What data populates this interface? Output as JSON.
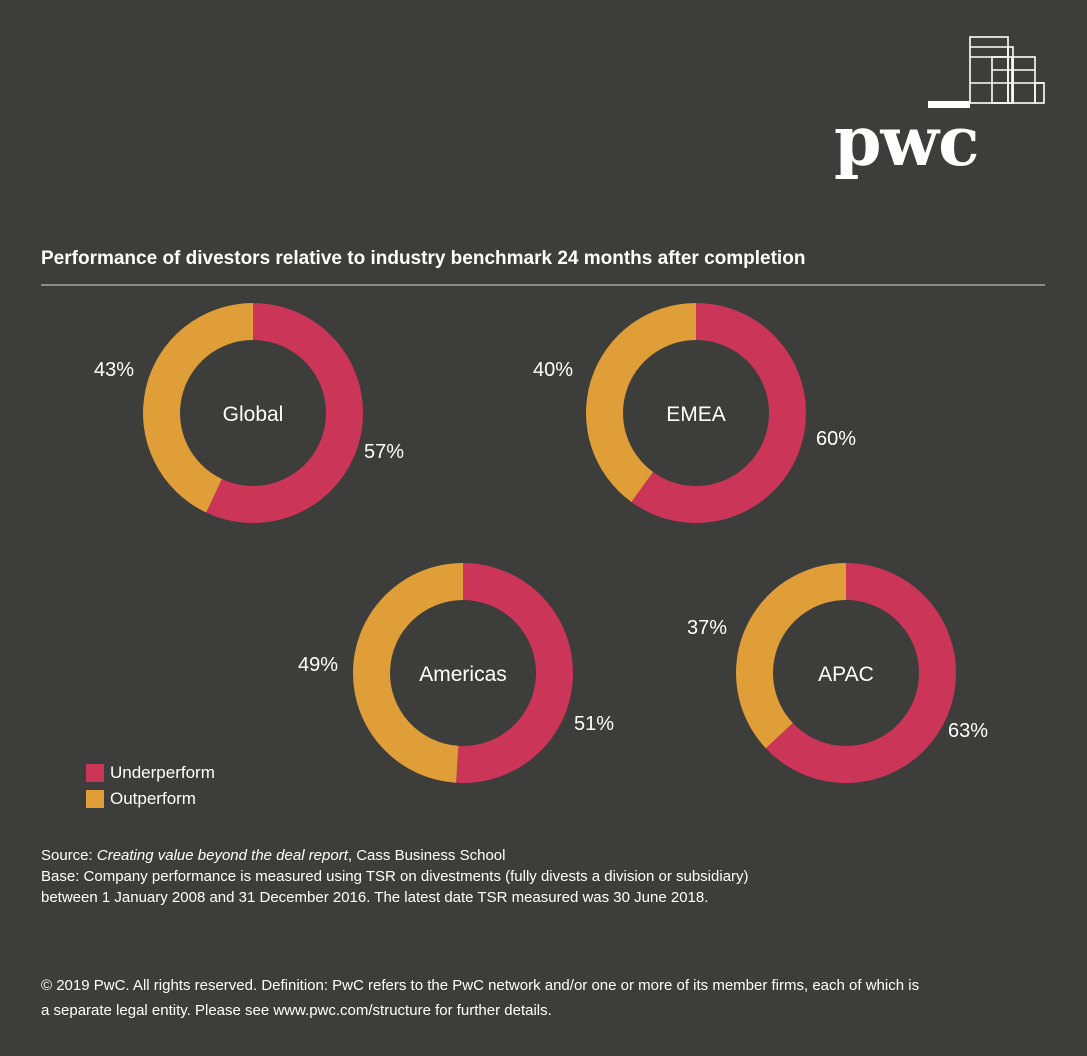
{
  "brand": {
    "logo_text": "pwc",
    "colors": {
      "background": "#3d3d3b",
      "underperform": "#cb3558",
      "outperform": "#e09e38",
      "text": "#ffffff"
    }
  },
  "header": {
    "title": "Performance of divestors relative to industry benchmark 24 months after completion"
  },
  "chart_data": {
    "type": "pie",
    "title": "Performance of divestors relative to industry benchmark 24 months after completion",
    "series_names": [
      "Underperform",
      "Outperform"
    ],
    "charts": [
      {
        "region": "Global",
        "underperform": 57,
        "outperform": 43,
        "underperform_label": "57%",
        "outperform_label": "43%"
      },
      {
        "region": "EMEA",
        "underperform": 60,
        "outperform": 40,
        "underperform_label": "60%",
        "outperform_label": "40%"
      },
      {
        "region": "Americas",
        "underperform": 51,
        "outperform": 49,
        "underperform_label": "51%",
        "outperform_label": "49%"
      },
      {
        "region": "APAC",
        "underperform": 63,
        "outperform": 37,
        "underperform_label": "63%",
        "outperform_label": "37%"
      }
    ],
    "legend_placement": "bottom-left"
  },
  "legend": {
    "items": [
      {
        "label": "Underperform",
        "color": "#cb3558"
      },
      {
        "label": "Outperform",
        "color": "#e09e38"
      }
    ]
  },
  "notes": {
    "source_prefix": "Source: ",
    "source_title": "Creating value beyond the deal report",
    "source_suffix": ", Cass Business School",
    "base_line1": "Base: Company performance is measured using TSR on divestments (fully divests a division or subsidiary)",
    "base_line2": "between 1 January 2008 and 31 December 2016. The latest date TSR measured was 30 June 2018."
  },
  "footer": {
    "line1": "© 2019 PwC. All rights reserved. Definition: PwC refers to the PwC network and/or one or more of its member firms, each of which is",
    "line2": "a separate legal entity. Please see www.pwc.com/structure for further details."
  }
}
